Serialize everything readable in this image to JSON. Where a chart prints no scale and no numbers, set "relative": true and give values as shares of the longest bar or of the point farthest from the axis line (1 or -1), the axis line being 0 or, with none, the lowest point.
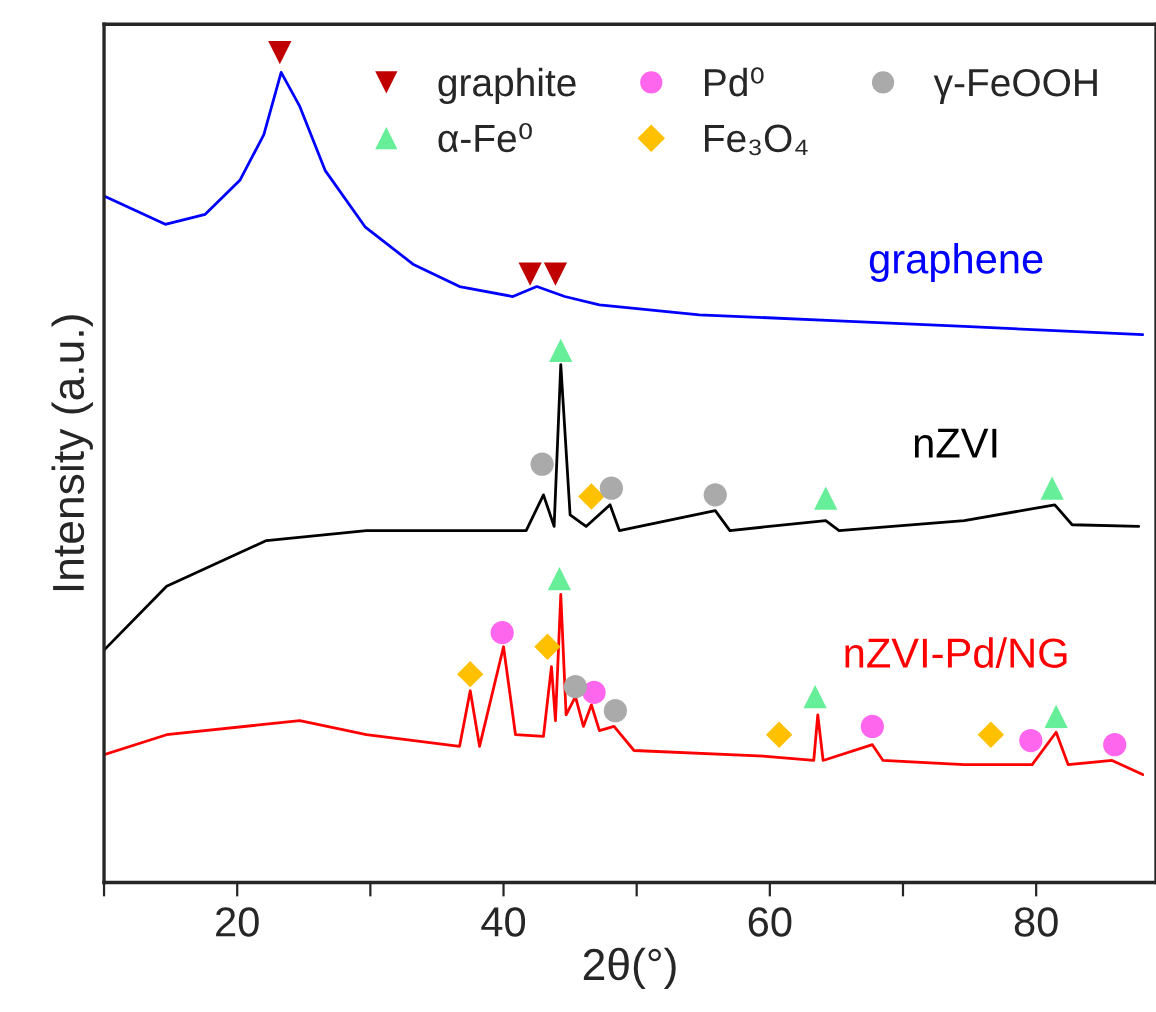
{
  "chart_data": {
    "type": "line",
    "xlabel": "2θ(°)",
    "ylabel": "Intensity (a.u.)",
    "relative": true,
    "xlim": [
      10,
      89
    ],
    "xticks": [
      {
        "value": 10,
        "label": null
      },
      20,
      {
        "value": 30,
        "label": null
      },
      40,
      {
        "value": 50,
        "label": null
      },
      60,
      {
        "value": 70,
        "label": null
      },
      80
    ],
    "tick_labels": "x",
    "grid": false,
    "legend": "top right",
    "series": [
      {
        "name": "graphene",
        "color": "#0000ff",
        "x": [
          10,
          14.6,
          17.6,
          20.2,
          22.0,
          23.3,
          24.7,
          26.6,
          29.6,
          33.2,
          36.7,
          40.7,
          42.5,
          44.6,
          47.2,
          54.7,
          64.7,
          74.6,
          88
        ],
        "values": [
          0.827,
          0.793,
          0.805,
          0.846,
          0.901,
          0.976,
          0.935,
          0.858,
          0.79,
          0.745,
          0.718,
          0.706,
          0.718,
          0.706,
          0.696,
          0.684,
          0.677,
          0.67,
          0.66
        ]
      },
      {
        "name": "nZVI",
        "color": "#000000",
        "x": [
          10,
          14.7,
          22.2,
          29.7,
          41.7,
          43.0,
          43.8,
          44.3,
          45.0,
          46.2,
          48.0,
          48.7,
          55.9,
          57.0,
          64.2,
          65.2,
          74.6,
          81.4,
          82.7,
          87.7
        ],
        "values": [
          0.28,
          0.357,
          0.412,
          0.424,
          0.424,
          0.467,
          0.429,
          0.624,
          0.443,
          0.429,
          0.455,
          0.424,
          0.448,
          0.424,
          0.436,
          0.424,
          0.436,
          0.455,
          0.431,
          0.429
        ]
      },
      {
        "name": "nZVI-Pd/NG",
        "color": "#ff0000",
        "x": [
          10,
          14.7,
          24.7,
          29.7,
          36.7,
          37.5,
          38.2,
          40.0,
          40.9,
          43.0,
          43.6,
          43.9,
          44.3,
          44.7,
          45.4,
          46.0,
          46.6,
          47.2,
          48.3,
          49.8,
          59.7,
          63.3,
          63.6,
          64.0,
          67.7,
          68.5,
          74.6,
          79.7,
          81.5,
          82.4,
          85.7,
          88
        ],
        "values": [
          0.154,
          0.178,
          0.195,
          0.178,
          0.164,
          0.231,
          0.164,
          0.284,
          0.178,
          0.176,
          0.26,
          0.195,
          0.347,
          0.202,
          0.224,
          0.188,
          0.214,
          0.183,
          0.188,
          0.159,
          0.152,
          0.147,
          0.202,
          0.147,
          0.166,
          0.147,
          0.142,
          0.142,
          0.181,
          0.142,
          0.147,
          0.13
        ]
      },
      {
        "name": "graphite",
        "type": "scatter",
        "marker": "triangle_down",
        "color": "#c00000",
        "x": [
          23.2,
          42.0,
          43.9
        ],
        "values": [
          1.0,
          0.733,
          0.733
        ]
      },
      {
        "name": "α-Fe⁰",
        "type": "scatter",
        "marker": "triangle",
        "color": "#66ee99",
        "x": [
          44.3,
          64.2,
          81.2,
          44.2,
          63.4,
          81.5
        ],
        "values": [
          0.641,
          0.463,
          0.475,
          0.366,
          0.224,
          0.2
        ]
      },
      {
        "name": "Pd⁰",
        "type": "scatter",
        "marker": "circle",
        "color": "#ff66ee",
        "x": [
          39.9,
          46.8,
          67.7,
          79.6,
          85.9
        ],
        "values": [
          0.301,
          0.229,
          0.188,
          0.171,
          0.166
        ]
      },
      {
        "name": "Fe₃O₄",
        "type": "scatter",
        "marker": "diamond",
        "color": "#ffc000",
        "x": [
          46.6,
          37.5,
          43.3,
          60.7,
          76.6
        ],
        "values": [
          0.465,
          0.251,
          0.284,
          0.178,
          0.178
        ]
      },
      {
        "name": "γ-FeOOH",
        "type": "scatter",
        "marker": "circle",
        "color": "#aaaaaa",
        "x": [
          42.9,
          48.1,
          55.9,
          45.4,
          48.4
        ],
        "values": [
          0.504,
          0.475,
          0.467,
          0.236,
          0.207
        ]
      }
    ]
  }
}
